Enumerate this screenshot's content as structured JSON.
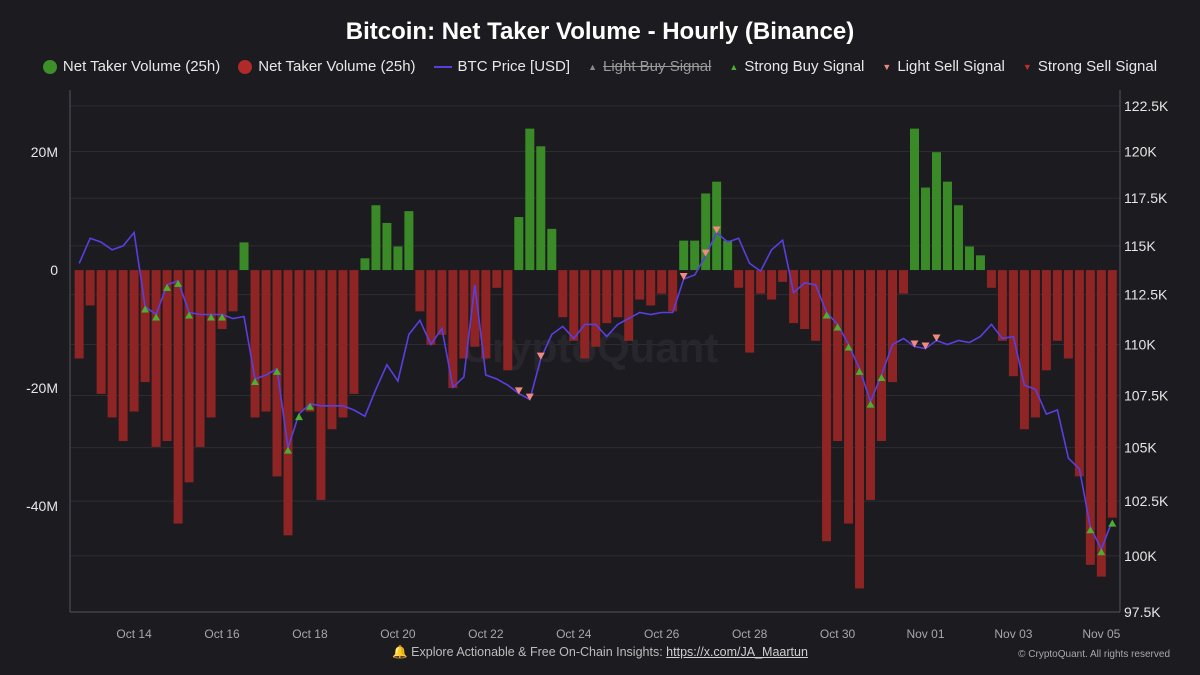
{
  "chart_data": {
    "type": "bar+line",
    "title": "Bitcoin: Net Taker Volume - Hourly (Binance)",
    "legend": [
      {
        "label": "Net Taker Volume (25h)",
        "marker": "dot",
        "color": "#3e8e2a"
      },
      {
        "label": "Net Taker Volume (25h)",
        "marker": "dot",
        "color": "#b02a2a"
      },
      {
        "label": "BTC Price [USD]",
        "marker": "line",
        "color": "#5a3fe0"
      },
      {
        "label": "Light Buy Signal",
        "marker": "triangle-up",
        "color": "#8a8a8a",
        "hidden": true
      },
      {
        "label": "Strong Buy Signal",
        "marker": "triangle-up",
        "color": "#4caf30"
      },
      {
        "label": "Light Sell Signal",
        "marker": "triangle-down",
        "color": "#f08a80"
      },
      {
        "label": "Strong Sell Signal",
        "marker": "triangle-down",
        "color": "#c0302a"
      }
    ],
    "legend_position": "top",
    "colors": {
      "positive": "#3a8a28",
      "negative": "#8e2424",
      "price": "#5a3fe0",
      "strong_buy": "#4caf30",
      "light_sell": "#f08a80",
      "background": "#1b1b20",
      "grid": "#2c2c33"
    },
    "xlim": [
      "Oct 12 13:00",
      "Nov 05 08:00"
    ],
    "x_ticks": [
      "Oct 14",
      "Oct 16",
      "Oct 18",
      "Oct 20",
      "Oct 22",
      "Oct 24",
      "Oct 26",
      "Oct 28",
      "Oct 30",
      "Nov 01",
      "Nov 03",
      "Nov 05"
    ],
    "y_left": {
      "unit": "USD",
      "ylim": [
        -58000000,
        29700000
      ],
      "ticks": [
        20000000,
        0,
        -20000000,
        -40000000
      ],
      "tick_labels": [
        "20M",
        "0",
        "-20M",
        "-40M"
      ]
    },
    "y_right": {
      "scale": "log",
      "ylim": [
        97500,
        123100
      ],
      "ticks": [
        122500,
        120000,
        117500,
        115000,
        112500,
        110000,
        107500,
        105000,
        102500,
        100000,
        97500
      ],
      "tick_labels": [
        "122.5K",
        "120K",
        "117.5K",
        "115K",
        "112.5K",
        "110K",
        "107.5K",
        "105K",
        "102.5K",
        "100K",
        "97.5K"
      ]
    },
    "grid": true,
    "columns": [
      "time",
      "net_taker_volume_M",
      "btc_price_K"
    ],
    "points": [
      [
        "Oct 12 18:00",
        -15,
        114.1
      ],
      [
        "Oct 13 00:00",
        -6,
        115.4
      ],
      [
        "Oct 13 06:00",
        -21,
        115.2
      ],
      [
        "Oct 13 12:00",
        -25,
        114.8
      ],
      [
        "Oct 13 18:00",
        -29,
        115.0
      ],
      [
        "Oct 14 00:00",
        -24,
        115.7
      ],
      [
        "Oct 14 06:00",
        -19,
        111.9
      ],
      [
        "Oct 14 12:00",
        -30,
        111.5
      ],
      [
        "Oct 14 18:00",
        -29,
        113.0
      ],
      [
        "Oct 15 00:00",
        -43,
        113.2
      ],
      [
        "Oct 15 06:00",
        -36,
        111.6
      ],
      [
        "Oct 15 12:00",
        -30,
        111.5
      ],
      [
        "Oct 15 18:00",
        -25,
        111.5
      ],
      [
        "Oct 16 00:00",
        -10,
        111.5
      ],
      [
        "Oct 16 06:00",
        -7,
        111.3
      ],
      [
        "Oct 16 12:00",
        4.7,
        111.4
      ],
      [
        "Oct 16 18:00",
        -25,
        108.3
      ],
      [
        "Oct 17 00:00",
        -24,
        108.5
      ],
      [
        "Oct 17 06:00",
        -35,
        108.8
      ],
      [
        "Oct 17 12:00",
        -45,
        105.0
      ],
      [
        "Oct 17 18:00",
        -24,
        106.6
      ],
      [
        "Oct 18 00:00",
        -24,
        107.1
      ],
      [
        "Oct 18 06:00",
        -39,
        107.0
      ],
      [
        "Oct 18 12:00",
        -27,
        107.0
      ],
      [
        "Oct 18 18:00",
        -25,
        107.0
      ],
      [
        "Oct 19 00:00",
        -21,
        106.8
      ],
      [
        "Oct 19 06:00",
        2,
        106.5
      ],
      [
        "Oct 19 12:00",
        11,
        107.8
      ],
      [
        "Oct 19 18:00",
        8,
        109.0
      ],
      [
        "Oct 20 00:00",
        4,
        108.2
      ],
      [
        "Oct 20 06:00",
        10,
        110.5
      ],
      [
        "Oct 20 12:00",
        -7,
        111.2
      ],
      [
        "Oct 20 18:00",
        -12.7,
        110.0
      ],
      [
        "Oct 21 00:00",
        -11,
        110.8
      ],
      [
        "Oct 21 06:00",
        -20,
        107.9
      ],
      [
        "Oct 21 12:00",
        -15,
        108.4
      ],
      [
        "Oct 21 18:00",
        -13,
        113.0
      ],
      [
        "Oct 22 00:00",
        -15,
        108.5
      ],
      [
        "Oct 22 06:00",
        -3,
        108.3
      ],
      [
        "Oct 22 12:00",
        -17,
        108.0
      ],
      [
        "Oct 22 18:00",
        9,
        107.6
      ],
      [
        "Oct 23 00:00",
        24,
        107.3
      ],
      [
        "Oct 23 06:00",
        21,
        109.3
      ],
      [
        "Oct 23 12:00",
        7,
        110.5
      ],
      [
        "Oct 23 18:00",
        -8,
        110.9
      ],
      [
        "Oct 24 00:00",
        -12,
        110.3
      ],
      [
        "Oct 24 06:00",
        -15,
        111.0
      ],
      [
        "Oct 24 12:00",
        -13,
        111.0
      ],
      [
        "Oct 24 18:00",
        -9,
        110.4
      ],
      [
        "Oct 25 00:00",
        -8,
        111.0
      ],
      [
        "Oct 25 06:00",
        -12,
        111.3
      ],
      [
        "Oct 25 12:00",
        -5,
        111.6
      ],
      [
        "Oct 25 18:00",
        -6,
        111.5
      ],
      [
        "Oct 26 00:00",
        -4,
        111.6
      ],
      [
        "Oct 26 06:00",
        -7,
        111.6
      ],
      [
        "Oct 26 12:00",
        5,
        113.3
      ],
      [
        "Oct 26 18:00",
        5,
        113.5
      ],
      [
        "Oct 27 00:00",
        13,
        114.5
      ],
      [
        "Oct 27 06:00",
        15,
        115.7
      ],
      [
        "Oct 27 12:00",
        5,
        115.2
      ],
      [
        "Oct 27 18:00",
        -3,
        115.4
      ],
      [
        "Oct 28 00:00",
        -14,
        114.1
      ],
      [
        "Oct 28 06:00",
        -4,
        113.7
      ],
      [
        "Oct 28 12:00",
        -5,
        114.8
      ],
      [
        "Oct 28 18:00",
        -2,
        115.3
      ],
      [
        "Oct 29 00:00",
        -9,
        112.6
      ],
      [
        "Oct 29 06:00",
        -10,
        113.1
      ],
      [
        "Oct 29 12:00",
        -12,
        113.0
      ],
      [
        "Oct 29 18:00",
        -46,
        111.6
      ],
      [
        "Oct 30 00:00",
        -29,
        111.0
      ],
      [
        "Oct 30 06:00",
        -43,
        110.0
      ],
      [
        "Oct 30 12:00",
        -54,
        108.8
      ],
      [
        "Oct 30 18:00",
        -39,
        107.2
      ],
      [
        "Oct 31 00:00",
        -29,
        108.5
      ],
      [
        "Oct 31 06:00",
        -19,
        110.0
      ],
      [
        "Oct 31 12:00",
        -4,
        110.3
      ],
      [
        "Oct 31 18:00",
        24,
        109.9
      ],
      [
        "Nov 01 00:00",
        14,
        109.8
      ],
      [
        "Nov 01 06:00",
        20,
        110.2
      ],
      [
        "Nov 01 12:00",
        15,
        110.0
      ],
      [
        "Nov 01 18:00",
        11,
        110.2
      ],
      [
        "Nov 02 00:00",
        4,
        110.1
      ],
      [
        "Nov 02 06:00",
        2.5,
        110.4
      ],
      [
        "Nov 02 12:00",
        -3,
        111.0
      ],
      [
        "Nov 02 18:00",
        -12,
        110.3
      ],
      [
        "Nov 03 00:00",
        -18,
        110.4
      ],
      [
        "Nov 03 06:00",
        -27,
        108.0
      ],
      [
        "Nov 03 12:00",
        -25,
        107.8
      ],
      [
        "Nov 03 18:00",
        -17,
        106.6
      ],
      [
        "Nov 04 00:00",
        -12,
        106.8
      ],
      [
        "Nov 04 06:00",
        -15,
        104.5
      ],
      [
        "Nov 04 12:00",
        -35,
        104.0
      ],
      [
        "Nov 04 18:00",
        -50,
        101.3
      ],
      [
        "Nov 05 00:00",
        -52,
        100.3
      ],
      [
        "Nov 05 06:00",
        -42,
        101.6
      ]
    ],
    "signals": {
      "strong_buy": [
        "Oct 14 06:00",
        "Oct 14 12:00",
        "Oct 14 18:00",
        "Oct 15 00:00",
        "Oct 15 06:00",
        "Oct 15 18:00",
        "Oct 16 00:00",
        "Oct 16 18:00",
        "Oct 17 06:00",
        "Oct 17 12:00",
        "Oct 17 18:00",
        "Oct 18 00:00",
        "Oct 29 18:00",
        "Oct 30 00:00",
        "Oct 30 06:00",
        "Oct 30 12:00",
        "Oct 30 18:00",
        "Oct 31 00:00",
        "Nov 04 18:00",
        "Nov 05 00:00",
        "Nov 05 06:00"
      ],
      "light_sell": [
        "Oct 22 18:00",
        "Oct 23 00:00",
        "Oct 23 06:00",
        "Oct 26 12:00",
        "Oct 27 00:00",
        "Oct 27 06:00",
        "Oct 31 18:00",
        "Nov 01 00:00",
        "Nov 01 06:00"
      ]
    },
    "watermark": "CryptoQuant"
  },
  "footer": {
    "bell_icon": "bell-icon",
    "text": "Explore Actionable & Free On-Chain Insights:",
    "link": "https://x.com/JA_Maartun",
    "copyright": "© CryptoQuant. All rights reserved"
  }
}
